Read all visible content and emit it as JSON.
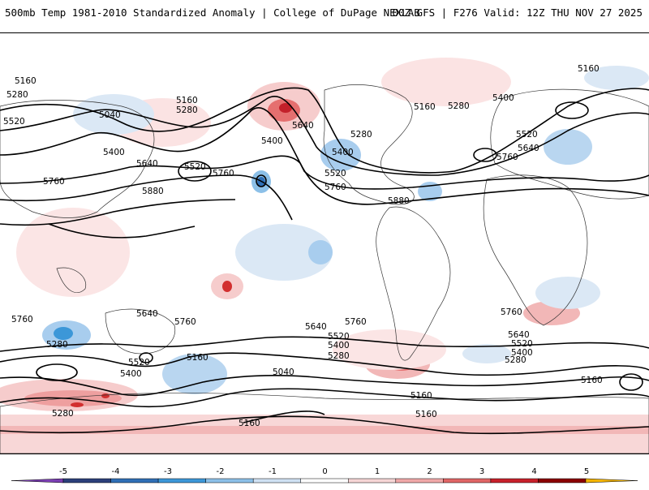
{
  "header": {
    "title_left": "500mb Temp 1981-2010 Standardized Anomaly | College of DuPage NEXLAB",
    "title_right": "00Z GFS | F276 Valid: 12Z THU NOV 27 2025"
  },
  "contour_labels": [
    {
      "id": "c1",
      "text": "5160"
    },
    {
      "id": "c2",
      "text": "5280"
    },
    {
      "id": "c3",
      "text": "5520"
    },
    {
      "id": "c4",
      "text": "5040"
    },
    {
      "id": "c5",
      "text": "5400"
    },
    {
      "id": "c6",
      "text": "5160"
    },
    {
      "id": "c7",
      "text": "5280"
    },
    {
      "id": "c8",
      "text": "5640"
    },
    {
      "id": "c9",
      "text": "5400"
    },
    {
      "id": "c10",
      "text": "5520"
    },
    {
      "id": "c11",
      "text": "5760"
    },
    {
      "id": "c12",
      "text": "5640"
    },
    {
      "id": "c13",
      "text": "5760"
    },
    {
      "id": "c14",
      "text": "5880"
    },
    {
      "id": "c15",
      "text": "5280"
    },
    {
      "id": "c16",
      "text": "5160"
    },
    {
      "id": "c17",
      "text": "5400"
    },
    {
      "id": "c18",
      "text": "5520"
    },
    {
      "id": "c19",
      "text": "5760"
    },
    {
      "id": "c20",
      "text": "5880"
    },
    {
      "id": "c21",
      "text": "5160"
    },
    {
      "id": "c22",
      "text": "5400"
    },
    {
      "id": "c23",
      "text": "5520"
    },
    {
      "id": "c24",
      "text": "5640"
    },
    {
      "id": "c25",
      "text": "5760"
    },
    {
      "id": "c26",
      "text": "5280"
    },
    {
      "id": "c27",
      "text": "5760"
    },
    {
      "id": "c28",
      "text": "5640"
    },
    {
      "id": "c29",
      "text": "5760"
    },
    {
      "id": "c30",
      "text": "5280"
    },
    {
      "id": "c31",
      "text": "5520"
    },
    {
      "id": "c32",
      "text": "5400"
    },
    {
      "id": "c33",
      "text": "5160"
    },
    {
      "id": "c34",
      "text": "5040"
    },
    {
      "id": "c35",
      "text": "5760"
    },
    {
      "id": "c36",
      "text": "5640"
    },
    {
      "id": "c37",
      "text": "5520"
    },
    {
      "id": "c38",
      "text": "5400"
    },
    {
      "id": "c39",
      "text": "5280"
    },
    {
      "id": "c40",
      "text": "5160"
    },
    {
      "id": "c41",
      "text": "5760"
    },
    {
      "id": "c42",
      "text": "5640"
    },
    {
      "id": "c43",
      "text": "5520"
    },
    {
      "id": "c44",
      "text": "5400"
    },
    {
      "id": "c45",
      "text": "5280"
    },
    {
      "id": "c46",
      "text": "5160"
    },
    {
      "id": "c47",
      "text": "5280"
    },
    {
      "id": "c48",
      "text": "5160"
    },
    {
      "id": "c49",
      "text": "5160"
    }
  ],
  "colorbar": {
    "ticks": [
      "-5",
      "-4",
      "-3",
      "-2",
      "-1",
      "0",
      "1",
      "2",
      "3",
      "4",
      "5"
    ],
    "colors": [
      "#7b3fb3",
      "#2b3f7a",
      "#2f6fb6",
      "#3c97d8",
      "#8cc0e8",
      "#cfe1f3",
      "#ffffff",
      "#f6d5d5",
      "#f0a8a8",
      "#e06565",
      "#c8202a",
      "#8b0000",
      "#f4b400"
    ]
  }
}
